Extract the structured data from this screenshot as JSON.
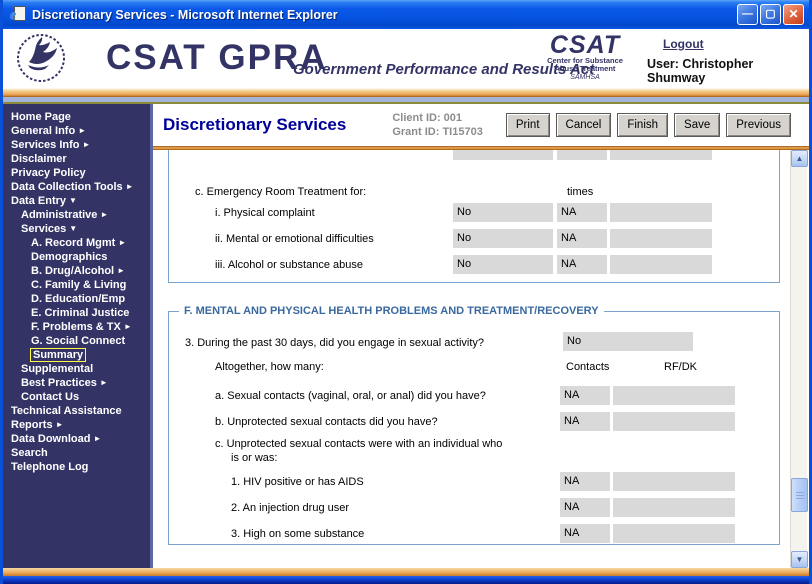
{
  "window": {
    "title": "Discretionary Services - Microsoft Internet Explorer"
  },
  "header": {
    "brand": "CSAT GPRA",
    "tagline": "Government Performance and Results Act",
    "csat_logo": {
      "name": "CSAT",
      "line1": "Center for Substance",
      "line2": "Abuse Treatment",
      "line3": "SAMHSA"
    },
    "logout_label": "Logout",
    "user_label": "User: Christopher Shumway"
  },
  "sidebar": {
    "items": [
      {
        "label": "Home Page",
        "level": 0,
        "arrow": "",
        "selected": false
      },
      {
        "label": "General Info",
        "level": 0,
        "arrow": "right",
        "selected": false
      },
      {
        "label": "Services Info",
        "level": 0,
        "arrow": "right",
        "selected": false
      },
      {
        "label": "Disclaimer",
        "level": 0,
        "arrow": "",
        "selected": false
      },
      {
        "label": "Privacy Policy",
        "level": 0,
        "arrow": "",
        "selected": false
      },
      {
        "label": "Data Collection Tools",
        "level": 0,
        "arrow": "right",
        "selected": false
      },
      {
        "label": "Data Entry",
        "level": 0,
        "arrow": "down",
        "selected": false
      },
      {
        "label": "Administrative",
        "level": 1,
        "arrow": "right",
        "selected": false
      },
      {
        "label": "Services",
        "level": 1,
        "arrow": "down",
        "selected": false
      },
      {
        "label": "A. Record Mgmt",
        "level": 2,
        "arrow": "right",
        "selected": false
      },
      {
        "label": "Demographics",
        "level": 2,
        "arrow": "",
        "selected": false
      },
      {
        "label": "B. Drug/Alcohol",
        "level": 2,
        "arrow": "right",
        "selected": false
      },
      {
        "label": "C. Family & Living",
        "level": 2,
        "arrow": "",
        "selected": false
      },
      {
        "label": "D. Education/Emp",
        "level": 2,
        "arrow": "",
        "selected": false
      },
      {
        "label": "E. Criminal Justice",
        "level": 2,
        "arrow": "",
        "selected": false
      },
      {
        "label": "F. Problems & TX",
        "level": 2,
        "arrow": "right",
        "selected": false
      },
      {
        "label": "G. Social Connect",
        "level": 2,
        "arrow": "",
        "selected": false
      },
      {
        "label": "Summary",
        "level": 2,
        "arrow": "",
        "selected": true
      },
      {
        "label": "Supplemental",
        "level": 1,
        "arrow": "",
        "selected": false
      },
      {
        "label": "Best Practices",
        "level": 1,
        "arrow": "right",
        "selected": false
      },
      {
        "label": "Contact Us",
        "level": 1,
        "arrow": "",
        "selected": false
      },
      {
        "label": "Technical Assistance",
        "level": 0,
        "arrow": "",
        "selected": false
      },
      {
        "label": "Reports",
        "level": 0,
        "arrow": "right",
        "selected": false
      },
      {
        "label": "Data Download",
        "level": 0,
        "arrow": "right",
        "selected": false
      },
      {
        "label": "Search",
        "level": 0,
        "arrow": "",
        "selected": false
      },
      {
        "label": "Telephone Log",
        "level": 0,
        "arrow": "",
        "selected": false
      }
    ]
  },
  "main": {
    "title": "Discretionary Services",
    "client_id": "Client ID: 001",
    "grant_id": "Grant ID: TI15703",
    "buttons": {
      "print": "Print",
      "cancel": "Cancel",
      "finish": "Finish",
      "save": "Save",
      "previous": "Previous"
    }
  },
  "form": {
    "section_c": {
      "heading": "c. Emergency Room Treatment for:",
      "times_label": "times",
      "rows": [
        {
          "label": "i. Physical complaint",
          "value1": "No",
          "value2": "NA",
          "value3": ""
        },
        {
          "label": "ii. Mental or emotional difficulties",
          "value1": "No",
          "value2": "NA",
          "value3": ""
        },
        {
          "label": "iii. Alcohol or substance abuse",
          "value1": "No",
          "value2": "NA",
          "value3": ""
        }
      ]
    },
    "section_f": {
      "legend": "F. MENTAL AND PHYSICAL HEALTH PROBLEMS AND TREATMENT/RECOVERY",
      "q3_label": "3. During the past 30 days, did you engage in sexual activity?",
      "q3_value": "No",
      "altogether_label": "Altogether, how many:",
      "col_contacts": "Contacts",
      "col_rfdk": "RF/DK",
      "rows": [
        {
          "label": "a. Sexual contacts (vaginal, oral, or anal) did you have?",
          "value": "NA",
          "rfdk": ""
        },
        {
          "label": "b. Unprotected sexual contacts did you have?",
          "value": "NA",
          "rfdk": ""
        }
      ],
      "sub_c_line1": "c. Unprotected sexual contacts were with an individual who",
      "sub_c_line2": "is or was:",
      "sub_rows": [
        {
          "label": "1. HIV positive or has AIDS",
          "value": "NA",
          "rfdk": ""
        },
        {
          "label": "2. An injection drug user",
          "value": "NA",
          "rfdk": ""
        },
        {
          "label": "3. High on some substance",
          "value": "NA",
          "rfdk": ""
        }
      ]
    }
  },
  "colors": {
    "brand_navy": "#333366",
    "titlebar_blue": "#0653e0",
    "accent_orange": "#eaa658",
    "selected_outline_yellow": "#ffff44",
    "disabled_field_gray": "#d9d9d9",
    "fieldset_blue": "#7ba3cc"
  }
}
